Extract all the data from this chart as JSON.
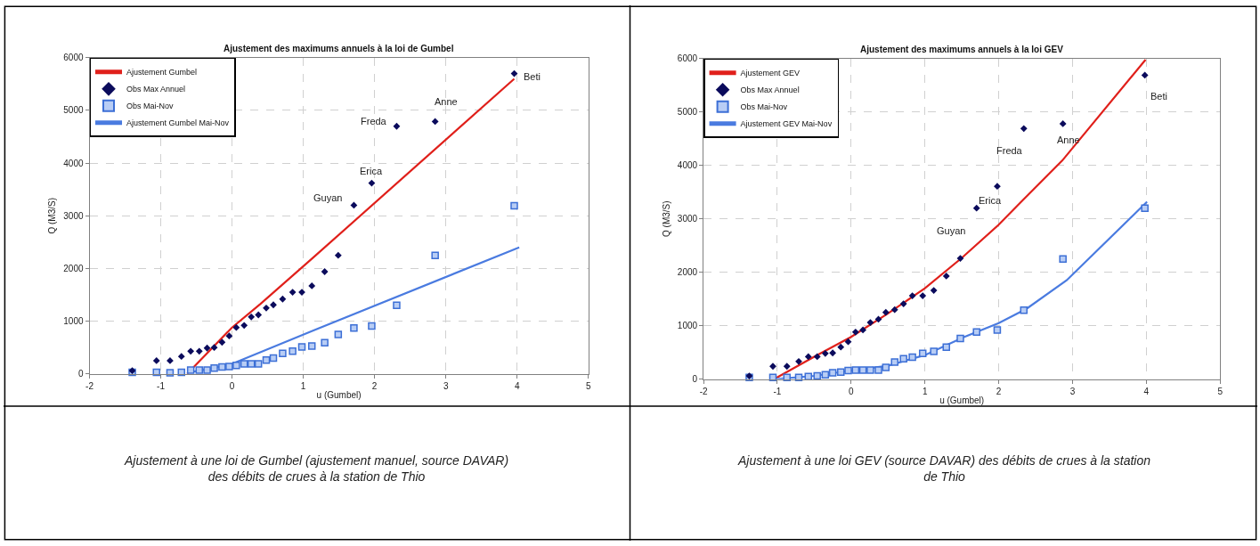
{
  "chart_data": [
    {
      "type": "scatter",
      "title": "Ajustement des maximums annuels à la loi de Gumbel",
      "xlabel": "u (Gumbel)",
      "ylabel": "Q (M3/S)",
      "xlim": [
        -2,
        5
      ],
      "xticks": [
        -2,
        -1,
        0,
        1,
        2,
        3,
        4,
        5
      ],
      "ylim": [
        0,
        6000
      ],
      "yticks": [
        0,
        1000,
        2000,
        3000,
        4000,
        5000,
        6000
      ],
      "grid": true,
      "legend": "top left",
      "series": [
        {
          "name": "Ajustement Gumbel",
          "type": "line",
          "color": "#e0201b",
          "x": [
            -0.63,
            0,
            0.4,
            1.15,
            3.96
          ],
          "values": [
            0,
            880,
            1330,
            2220,
            5600
          ]
        },
        {
          "name": "Obs Max Annuel",
          "type": "scatter",
          "marker": "diamond",
          "color": "#0b0b5c",
          "x": [
            -1.4,
            -1.06,
            -0.87,
            -0.71,
            -0.58,
            -0.46,
            -0.35,
            -0.25,
            -0.14,
            -0.04,
            0.06,
            0.17,
            0.27,
            0.37,
            0.48,
            0.58,
            0.71,
            0.85,
            0.98,
            1.12,
            1.3,
            1.49,
            1.71,
            1.96,
            2.31,
            2.85,
            3.96
          ],
          "values": [
            60,
            250,
            250,
            330,
            430,
            430,
            490,
            500,
            600,
            720,
            880,
            920,
            1080,
            1120,
            1250,
            1310,
            1420,
            1550,
            1550,
            1670,
            1940,
            2250,
            3200,
            3620,
            4700,
            4790,
            5700
          ]
        },
        {
          "name": "Obs Mai-Nov",
          "type": "scatter",
          "marker": "square",
          "color": "#3c6fd6",
          "x": [
            -1.4,
            -1.06,
            -0.87,
            -0.71,
            -0.58,
            -0.46,
            -0.35,
            -0.25,
            -0.14,
            -0.04,
            0.06,
            0.17,
            0.27,
            0.37,
            0.48,
            0.58,
            0.71,
            0.85,
            0.98,
            1.12,
            1.3,
            1.49,
            1.71,
            1.96,
            2.31,
            2.85,
            3.96
          ],
          "values": [
            30,
            30,
            20,
            30,
            70,
            70,
            70,
            110,
            130,
            140,
            160,
            190,
            190,
            190,
            260,
            300,
            390,
            430,
            510,
            530,
            590,
            750,
            870,
            910,
            1300,
            2250,
            3190
          ]
        },
        {
          "name": "Ajustement Gumbel Mai-Nov",
          "type": "line",
          "color": "#4a7be0",
          "x": [
            -0.6,
            -0.3,
            0,
            1.15,
            4.03
          ],
          "values": [
            30,
            100,
            190,
            830,
            2400
          ]
        }
      ],
      "annotations": [
        {
          "text": "Guyan",
          "x": 1.71,
          "y": 3200
        },
        {
          "text": "Erica",
          "x": 1.96,
          "y": 3620
        },
        {
          "text": "Freda",
          "x": 2.31,
          "y": 4700
        },
        {
          "text": "Anne",
          "x": 2.85,
          "y": 4790
        },
        {
          "text": "Beti",
          "x": 3.96,
          "y": 5700
        },
        "Ajustement à une loi de Gumbel (ajustement manuel, source DAVAR) des débits de crues à la station de Thio"
      ]
    },
    {
      "type": "scatter",
      "title": "Ajustement des maximums annuels à la loi GEV",
      "xlabel": "u (Gumbel)",
      "ylabel": "Q (M3/S)",
      "xlim": [
        -2,
        5
      ],
      "xticks": [
        -2,
        -1,
        0,
        1,
        2,
        3,
        4,
        5
      ],
      "ylim": [
        0,
        6000
      ],
      "yticks": [
        0,
        1000,
        2000,
        3000,
        4000,
        5000,
        6000
      ],
      "grid": true,
      "legend": "top left",
      "series": [
        {
          "name": "Ajustement GEV",
          "type": "line",
          "color": "#e0201b",
          "x": [
            -1.02,
            -0.5,
            0,
            0.5,
            1,
            1.5,
            2,
            2.32,
            2.86,
            3.99
          ],
          "values": [
            20,
            420,
            790,
            1230,
            1700,
            2270,
            2890,
            3340,
            4090,
            5980
          ]
        },
        {
          "name": "Obs Max Annuel",
          "type": "scatter",
          "marker": "diamond",
          "color": "#0b0b5c",
          "x": [
            -1.38,
            -1.06,
            -0.87,
            -0.71,
            -0.58,
            -0.46,
            -0.35,
            -0.25,
            -0.14,
            -0.04,
            0.06,
            0.16,
            0.26,
            0.37,
            0.47,
            0.59,
            0.71,
            0.83,
            0.97,
            1.12,
            1.29,
            1.48,
            1.7,
            1.98,
            2.34,
            2.87,
            3.98
          ],
          "values": [
            60,
            240,
            240,
            330,
            420,
            420,
            480,
            490,
            600,
            700,
            880,
            920,
            1060,
            1120,
            1250,
            1300,
            1410,
            1560,
            1560,
            1660,
            1930,
            2260,
            3200,
            3610,
            4690,
            4780,
            5690
          ]
        },
        {
          "name": "Obs Mai-Nov",
          "type": "scatter",
          "marker": "square",
          "color": "#3c6fd6",
          "x": [
            -1.38,
            -1.06,
            -0.87,
            -0.71,
            -0.58,
            -0.46,
            -0.35,
            -0.25,
            -0.14,
            -0.04,
            0.06,
            0.16,
            0.26,
            0.37,
            0.47,
            0.59,
            0.71,
            0.83,
            0.97,
            1.12,
            1.29,
            1.48,
            1.7,
            1.98,
            2.34,
            2.87,
            3.98
          ],
          "values": [
            30,
            30,
            30,
            30,
            50,
            60,
            80,
            120,
            130,
            160,
            170,
            170,
            170,
            170,
            220,
            320,
            380,
            410,
            480,
            520,
            600,
            760,
            880,
            920,
            1290,
            2250,
            3200
          ]
        },
        {
          "name": "Ajustement GEV Mai-Nov",
          "type": "line",
          "color": "#4a7be0",
          "x": [
            -1.02,
            -0.5,
            0,
            0.5,
            1,
            1.52,
            2,
            2.38,
            2.92,
            4.01
          ],
          "values": [
            0,
            60,
            160,
            250,
            450,
            780,
            1050,
            1320,
            1850,
            3320
          ]
        }
      ],
      "annotations": [
        {
          "text": "Guyan",
          "x": 1.7,
          "y": 3200
        },
        {
          "text": "Erica",
          "x": 1.98,
          "y": 3610
        },
        {
          "text": "Freda",
          "x": 2.34,
          "y": 4690
        },
        {
          "text": "Anne",
          "x": 2.87,
          "y": 4780
        },
        {
          "text": "Beti",
          "x": 3.98,
          "y": 5690
        },
        "Ajustement à une loi GEV (source DAVAR) des débits de crues à la station de Thio"
      ]
    }
  ]
}
